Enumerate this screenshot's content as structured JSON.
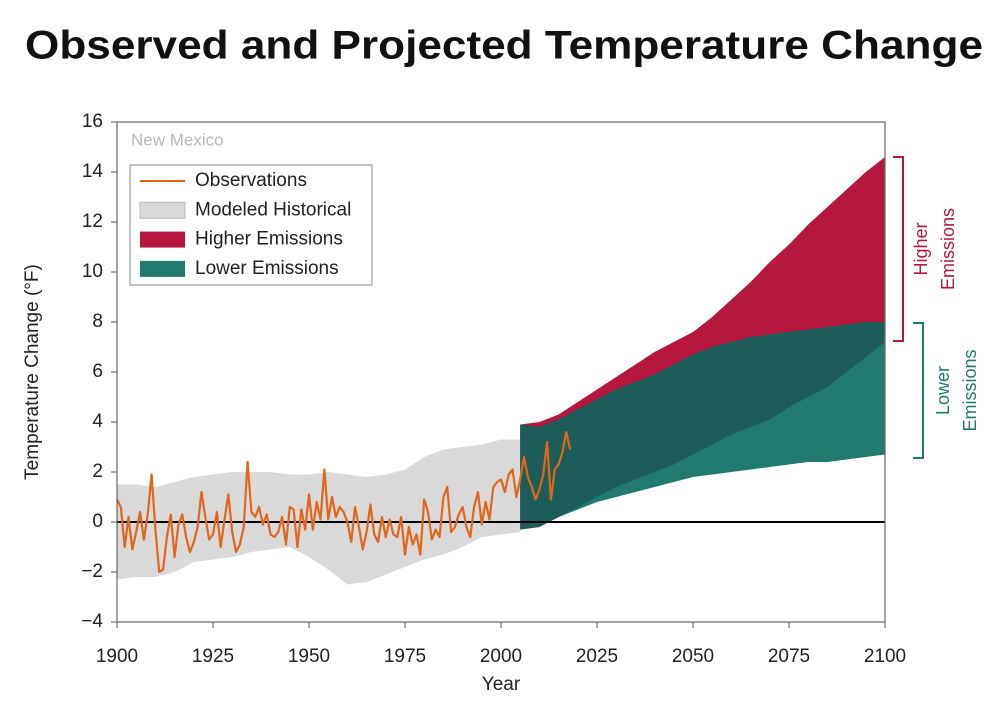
{
  "chart_data": {
    "type": "line",
    "title": "Observed and Projected Temperature Change",
    "x_label": "Year",
    "y_label": "Temperature Change (°F)",
    "annotations": [
      {
        "text": "New Mexico"
      }
    ],
    "brackets": [
      {
        "lines": [
          "Higher",
          "Emissions"
        ],
        "color": "#b5173f"
      },
      {
        "lines": [
          "Lower",
          "Emissions"
        ],
        "color": "#217a6e"
      }
    ],
    "xlim": [
      1900,
      2100
    ],
    "xticks": [
      1900,
      1925,
      1950,
      1975,
      2000,
      2025,
      2050,
      2075,
      2100
    ],
    "ylim": [
      -4,
      16
    ],
    "yticks": [
      {
        "value": -4,
        "label": "−4"
      },
      {
        "value": -2,
        "label": "−2"
      },
      0,
      2,
      4,
      6,
      8,
      10,
      12,
      14,
      16
    ],
    "zero_line": true,
    "series": [
      {
        "name": "Observations",
        "color": "#e0661b",
        "x": [
          1900,
          1901,
          1902,
          1903,
          1904,
          1905,
          1906,
          1907,
          1908,
          1909,
          1910,
          1911,
          1912,
          1913,
          1914,
          1915,
          1916,
          1917,
          1918,
          1919,
          1920,
          1921,
          1922,
          1923,
          1924,
          1925,
          1926,
          1927,
          1928,
          1929,
          1930,
          1931,
          1932,
          1933,
          1934,
          1935,
          1936,
          1937,
          1938,
          1939,
          1940,
          1941,
          1942,
          1943,
          1944,
          1945,
          1946,
          1947,
          1948,
          1949,
          1950,
          1951,
          1952,
          1953,
          1954,
          1955,
          1956,
          1957,
          1958,
          1959,
          1960,
          1961,
          1962,
          1963,
          1964,
          1965,
          1966,
          1967,
          1968,
          1969,
          1970,
          1971,
          1972,
          1973,
          1974,
          1975,
          1976,
          1977,
          1978,
          1979,
          1980,
          1981,
          1982,
          1983,
          1984,
          1985,
          1986,
          1987,
          1988,
          1989,
          1990,
          1991,
          1992,
          1993,
          1994,
          1995,
          1996,
          1997,
          1998,
          1999,
          2000,
          2001,
          2002,
          2003,
          2004,
          2005,
          2006,
          2007,
          2008,
          2009,
          2010,
          2011,
          2012,
          2013,
          2014,
          2015,
          2016,
          2017,
          2018
        ],
        "values": [
          0.9,
          0.6,
          -1.0,
          0.2,
          -1.1,
          -0.4,
          0.4,
          -0.7,
          0.3,
          1.9,
          -0.3,
          -2.0,
          -1.9,
          -0.6,
          0.3,
          -1.4,
          -0.1,
          0.3,
          -0.6,
          -1.2,
          -0.8,
          -0.2,
          1.2,
          0.2,
          -0.7,
          -0.5,
          0.4,
          -1.0,
          0.1,
          1.1,
          -0.4,
          -1.2,
          -0.9,
          -0.2,
          2.4,
          0.4,
          0.2,
          0.6,
          -0.1,
          0.3,
          -0.5,
          -0.6,
          -0.4,
          0.2,
          -0.9,
          0.6,
          0.5,
          -1.0,
          0.5,
          -0.3,
          1.1,
          -0.3,
          0.8,
          0.1,
          2.1,
          0.1,
          1.0,
          0.2,
          0.6,
          0.4,
          0.0,
          -0.8,
          0.6,
          -0.2,
          -1.1,
          -0.4,
          0.7,
          -0.5,
          -0.8,
          0.2,
          -0.6,
          0.1,
          -0.5,
          -0.6,
          0.2,
          -1.3,
          -0.2,
          -0.9,
          -0.5,
          -1.3,
          0.9,
          0.4,
          -0.7,
          -0.3,
          -0.6,
          1.0,
          1.4,
          -0.4,
          -0.2,
          0.3,
          0.6,
          -0.2,
          -0.6,
          0.6,
          1.2,
          -0.1,
          0.8,
          0.1,
          1.4,
          1.6,
          1.7,
          1.2,
          1.9,
          2.1,
          1.0,
          1.7,
          2.6,
          1.8,
          1.4,
          0.9,
          1.3,
          1.9,
          3.2,
          0.9,
          2.1,
          2.3,
          2.8,
          3.6,
          2.9
        ]
      },
      {
        "name": "Modeled Historical",
        "color": "#d9d9d9",
        "x": [
          1900,
          1905,
          1910,
          1915,
          1920,
          1925,
          1930,
          1935,
          1940,
          1945,
          1950,
          1955,
          1960,
          1965,
          1970,
          1975,
          1980,
          1985,
          1990,
          1995,
          2000,
          2005
        ],
        "upper": [
          1.5,
          1.5,
          1.4,
          1.6,
          1.8,
          1.9,
          2.0,
          2.0,
          2.0,
          1.9,
          1.9,
          2.0,
          1.9,
          1.8,
          1.9,
          2.1,
          2.6,
          2.9,
          3.0,
          3.1,
          3.3,
          3.3
        ],
        "lower": [
          -2.3,
          -2.2,
          -2.2,
          -2.0,
          -1.6,
          -1.5,
          -1.4,
          -1.2,
          -1.1,
          -1.0,
          -1.4,
          -1.9,
          -2.5,
          -2.4,
          -2.1,
          -1.8,
          -1.5,
          -1.3,
          -1.0,
          -0.6,
          -0.5,
          -0.4
        ]
      },
      {
        "name": "Higher Emissions",
        "color": "#b5173f",
        "x": [
          2005,
          2010,
          2015,
          2020,
          2025,
          2030,
          2035,
          2040,
          2045,
          2050,
          2055,
          2060,
          2065,
          2070,
          2075,
          2080,
          2085,
          2090,
          2095,
          2100
        ],
        "upper": [
          3.9,
          4.0,
          4.3,
          4.8,
          5.3,
          5.8,
          6.3,
          6.8,
          7.2,
          7.6,
          8.2,
          8.9,
          9.6,
          10.4,
          11.1,
          11.9,
          12.6,
          13.3,
          14.0,
          14.6
        ],
        "lower": [
          -0.3,
          -0.2,
          0.2,
          0.6,
          1.0,
          1.4,
          1.7,
          2.0,
          2.3,
          2.7,
          3.1,
          3.5,
          3.8,
          4.1,
          4.6,
          5.0,
          5.4,
          6.0,
          6.6,
          7.2
        ]
      },
      {
        "name": "Lower Emissions",
        "color": "#217a6e",
        "overlap_color": "#1c5c59",
        "x": [
          2005,
          2010,
          2015,
          2020,
          2025,
          2030,
          2035,
          2040,
          2045,
          2050,
          2055,
          2060,
          2065,
          2070,
          2075,
          2080,
          2085,
          2090,
          2095,
          2100
        ],
        "upper": [
          3.9,
          3.8,
          4.1,
          4.5,
          4.9,
          5.3,
          5.6,
          5.9,
          6.3,
          6.7,
          7.0,
          7.2,
          7.4,
          7.5,
          7.6,
          7.7,
          7.8,
          7.9,
          8.0,
          8.0
        ],
        "lower": [
          -0.3,
          -0.2,
          0.2,
          0.5,
          0.8,
          1.0,
          1.2,
          1.4,
          1.6,
          1.8,
          1.9,
          2.0,
          2.1,
          2.2,
          2.3,
          2.4,
          2.4,
          2.5,
          2.6,
          2.7
        ]
      }
    ]
  }
}
